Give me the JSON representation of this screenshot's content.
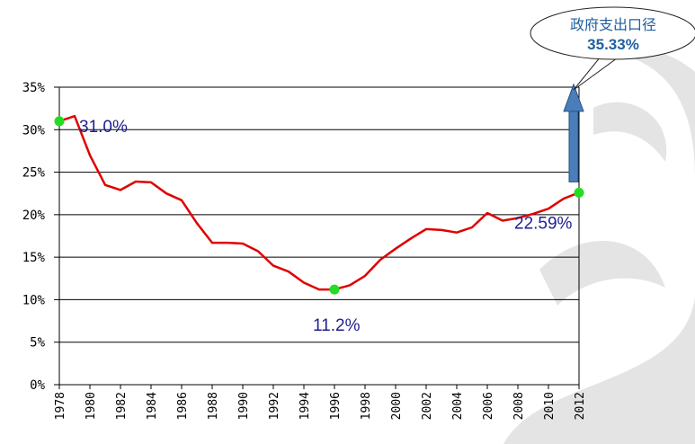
{
  "chart_data": {
    "type": "line",
    "title": "",
    "xlabel": "",
    "ylabel": "",
    "ylim": [
      0,
      35
    ],
    "xlim": [
      1978,
      2012
    ],
    "y_ticks": [
      "0%",
      "5%",
      "10%",
      "15%",
      "20%",
      "25%",
      "30%",
      "35%"
    ],
    "x_ticks": [
      "1978",
      "1980",
      "1982",
      "1984",
      "1986",
      "1988",
      "1990",
      "1992",
      "1994",
      "1996",
      "1998",
      "2000",
      "2002",
      "2004",
      "2006",
      "2008",
      "2010",
      "2012"
    ],
    "grid": true,
    "legend": "none",
    "series": [
      {
        "color": "#e00000",
        "x": [
          1978,
          1979,
          1980,
          1981,
          1982,
          1983,
          1984,
          1985,
          1986,
          1987,
          1988,
          1989,
          1990,
          1991,
          1992,
          1993,
          1994,
          1995,
          1996,
          1997,
          1998,
          1999,
          2000,
          2001,
          2002,
          2003,
          2004,
          2005,
          2006,
          2007,
          2008,
          2009,
          2010,
          2011,
          2012
        ],
        "y": [
          31.0,
          31.6,
          27.0,
          23.5,
          22.9,
          23.9,
          23.8,
          22.5,
          21.7,
          19.0,
          16.7,
          16.7,
          16.6,
          15.7,
          14.0,
          13.3,
          12.0,
          11.2,
          11.2,
          11.7,
          12.8,
          14.7,
          16.0,
          17.2,
          18.3,
          18.2,
          17.9,
          18.5,
          20.2,
          19.3,
          19.6,
          20.1,
          20.7,
          21.9,
          22.6
        ]
      }
    ],
    "highlight_points": [
      {
        "x": 1978,
        "y": 31.0,
        "label": "31.0%"
      },
      {
        "x": 1996,
        "y": 11.2,
        "label": "11.2%"
      },
      {
        "x": 2012,
        "y": 22.59,
        "label": "22.59%"
      }
    ],
    "marker_color": "#22dd22",
    "arrow": {
      "from": 22.59,
      "to": 35.33,
      "color": "#4a7ebb"
    },
    "callout": {
      "line1": "政府支出口径",
      "line2": "35.33%"
    }
  }
}
